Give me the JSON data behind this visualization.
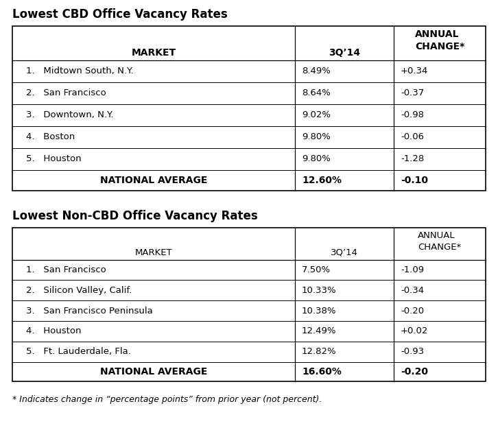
{
  "title1": "Lowest CBD Office Vacancy Rates",
  "title2": "Lowest Non-CBD Office Vacancy Rates",
  "footnote": "* Indicates change in “percentage points” from prior year (not percent).",
  "col_headers_cbd": [
    "MARKET",
    "3Q’14",
    "ANNUAL\nCHANGE*"
  ],
  "col_headers_noncbd": [
    "MARKET",
    "3Q’14",
    "ANNUAL\nCHANGE*"
  ],
  "cbd_rows": [
    [
      "1.   Midtown South, N.Y.",
      "8.49%",
      "+0.34"
    ],
    [
      "2.   San Francisco",
      "8.64%",
      "-0.37"
    ],
    [
      "3.   Downtown, N.Y.",
      "9.02%",
      "-0.98"
    ],
    [
      "4.   Boston",
      "9.80%",
      "-0.06"
    ],
    [
      "5.   Houston",
      "9.80%",
      "-1.28"
    ]
  ],
  "cbd_avg": [
    "NATIONAL AVERAGE",
    "12.60%",
    "-0.10"
  ],
  "noncbd_rows": [
    [
      "1.   San Francisco",
      "7.50%",
      "-1.09"
    ],
    [
      "2.   Silicon Valley, Calif.",
      "10.33%",
      "-0.34"
    ],
    [
      "3.   San Francisco Peninsula",
      "10.38%",
      "-0.20"
    ],
    [
      "4.   Houston",
      "12.49%",
      "+0.02"
    ],
    [
      "5.   Ft. Lauderdale, Fla.",
      "12.82%",
      "-0.93"
    ]
  ],
  "noncbd_avg": [
    "NATIONAL AVERAGE",
    "16.60%",
    "-0.20"
  ],
  "bg_color": "#ffffff",
  "text_color": "#000000",
  "border_color": "#000000",
  "title_fontsize": 12,
  "header_fontsize_cbd": 10,
  "header_fontsize_noncbd": 9.5,
  "cell_fontsize": 9.5,
  "avg_fontsize": 10,
  "footnote_fontsize": 9
}
